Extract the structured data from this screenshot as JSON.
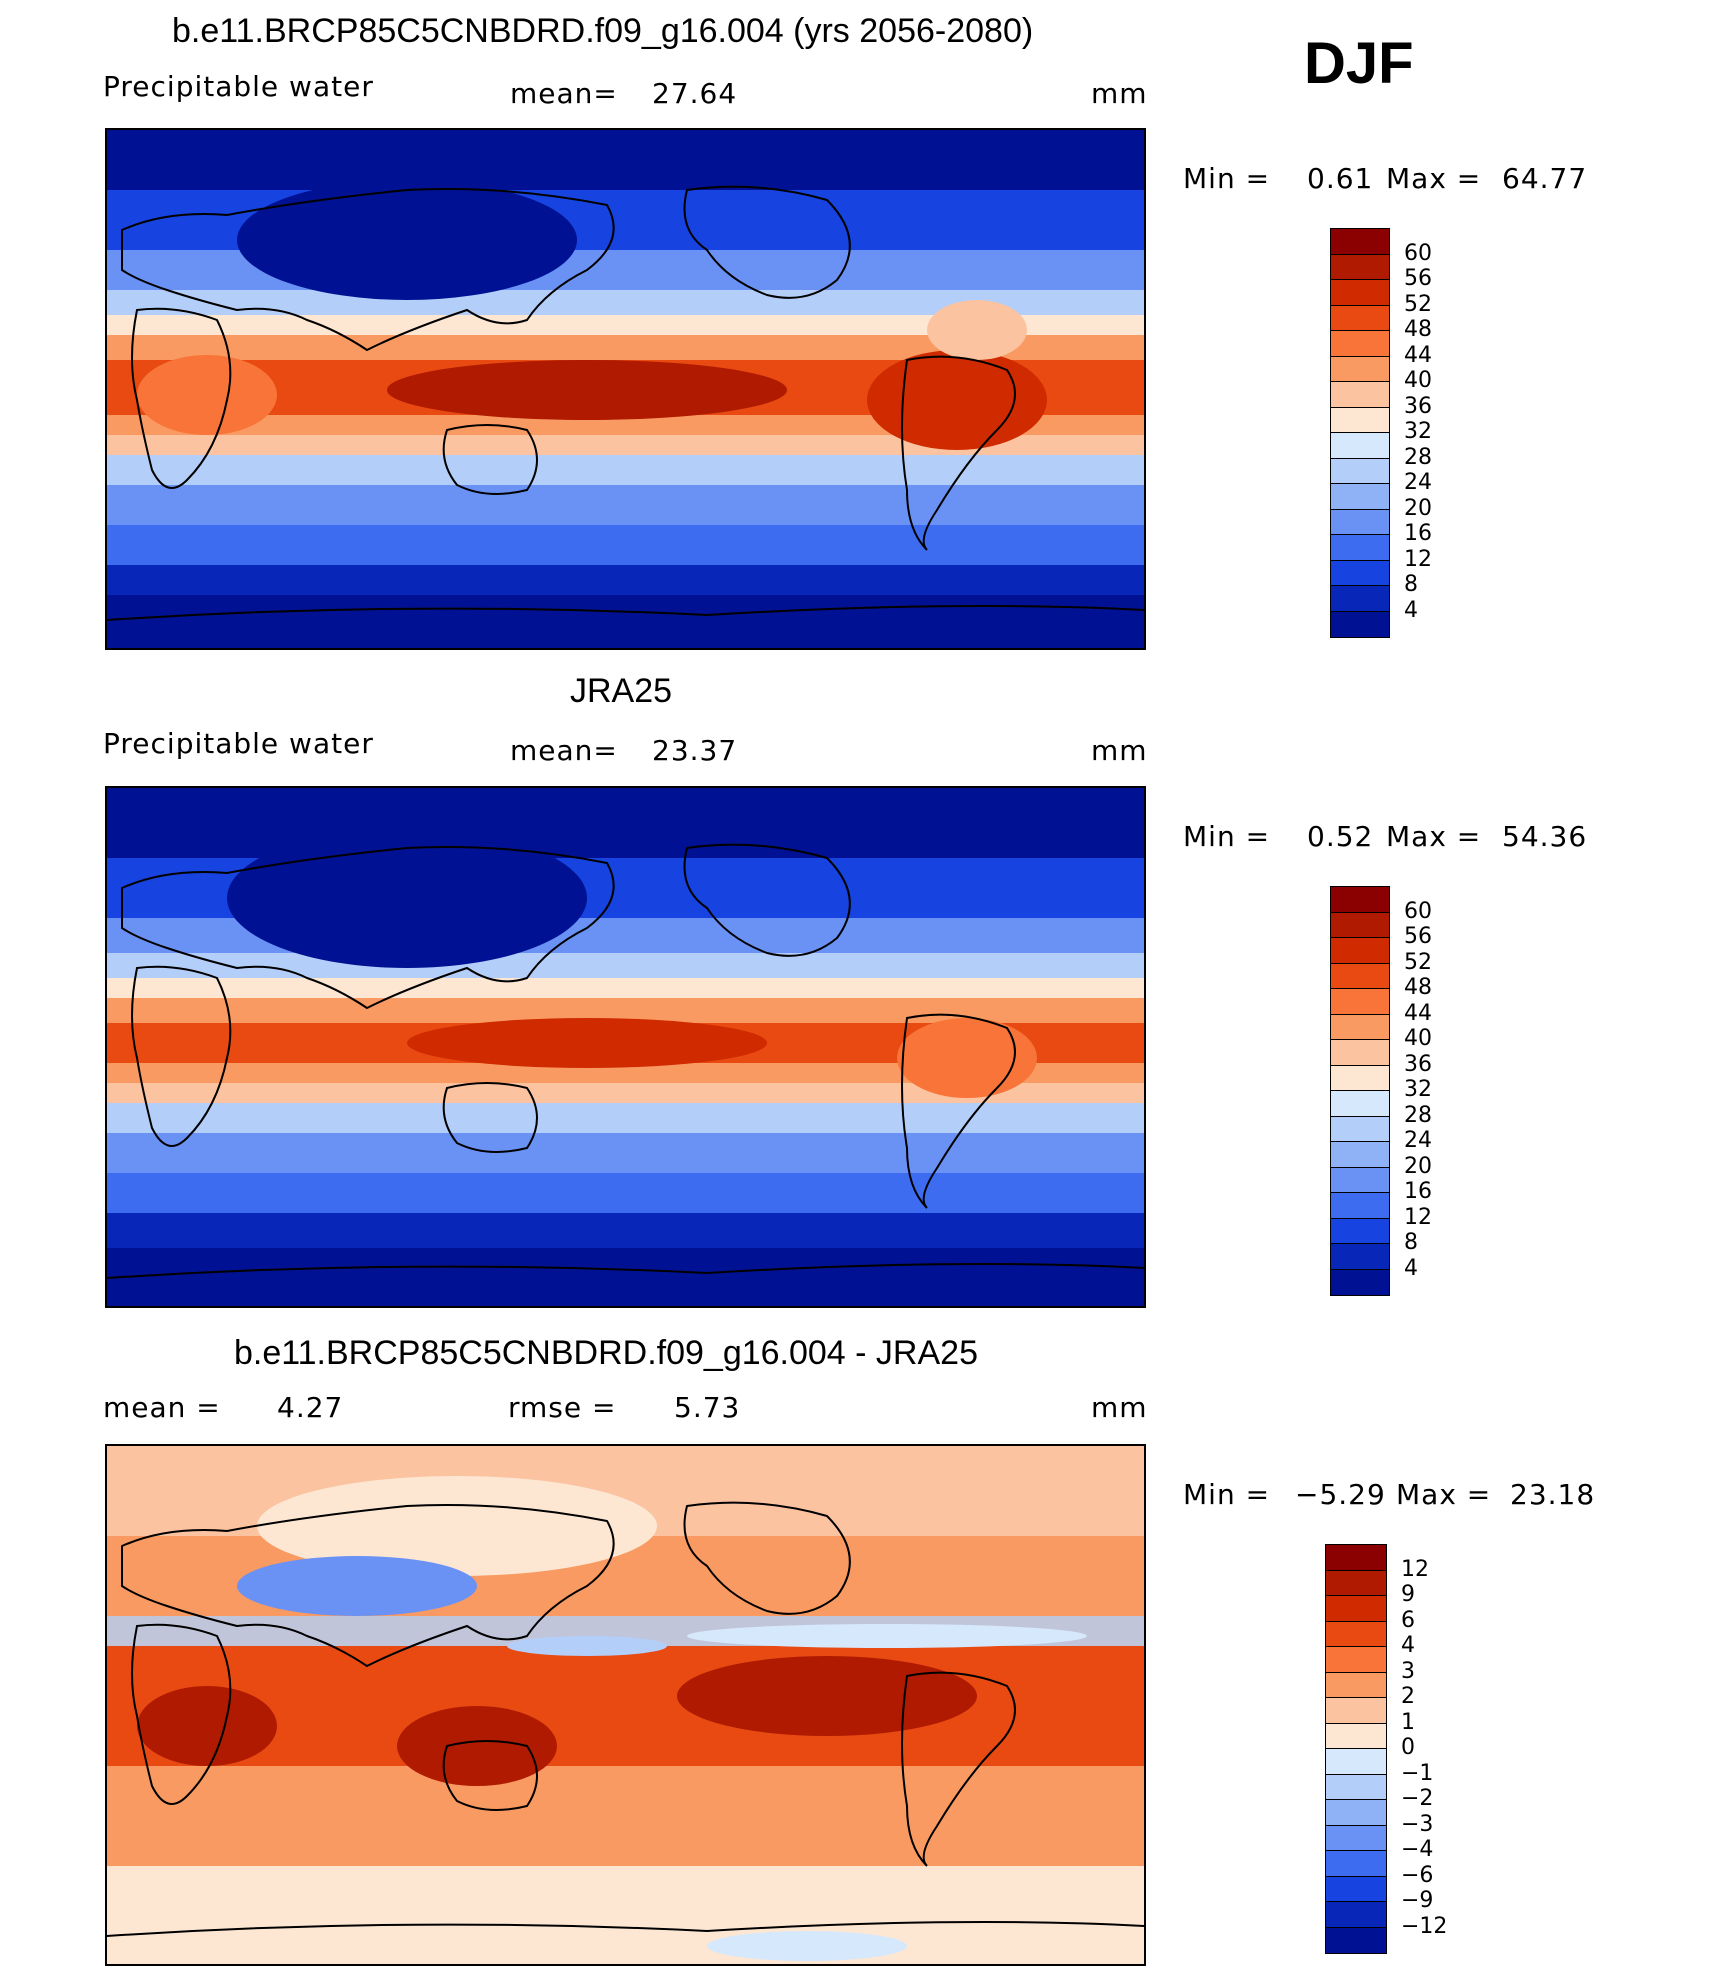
{
  "season": "DJF",
  "panels": [
    {
      "id": "model",
      "title": "b.e11.BRCP85C5CNBDRD.f09_g16.004 (yrs 2056-2080)",
      "left_label": "Precipitable  water",
      "stat_label": "mean=",
      "stat_value": "27.64",
      "units": "mm",
      "min_label": "Min  =",
      "min_value": "0.61",
      "max_label": "Max  =",
      "max_value": "64.77",
      "colorbar": {
        "levels": [
          "60",
          "56",
          "52",
          "48",
          "44",
          "40",
          "36",
          "32",
          "28",
          "24",
          "20",
          "16",
          "12",
          "8",
          "4"
        ],
        "colors": [
          "#8b0000",
          "#b01a00",
          "#d02a00",
          "#e84a12",
          "#f87438",
          "#f99a62",
          "#fbc3a0",
          "#fde7d2",
          "#d6e8fb",
          "#b3cff9",
          "#8fb2f7",
          "#6a92f5",
          "#3e6cf1",
          "#1743e0",
          "#0826b8",
          "#001293"
        ]
      }
    },
    {
      "id": "obs",
      "title": "JRA25",
      "left_label": "Precipitable  water",
      "stat_label": "mean=",
      "stat_value": "23.37",
      "units": "mm",
      "min_label": "Min  =",
      "min_value": "0.52",
      "max_label": "Max  =",
      "max_value": "54.36",
      "colorbar": {
        "levels": [
          "60",
          "56",
          "52",
          "48",
          "44",
          "40",
          "36",
          "32",
          "28",
          "24",
          "20",
          "16",
          "12",
          "8",
          "4"
        ],
        "colors": [
          "#8b0000",
          "#b01a00",
          "#d02a00",
          "#e84a12",
          "#f87438",
          "#f99a62",
          "#fbc3a0",
          "#fde7d2",
          "#d6e8fb",
          "#b3cff9",
          "#8fb2f7",
          "#6a92f5",
          "#3e6cf1",
          "#1743e0",
          "#0826b8",
          "#001293"
        ]
      }
    },
    {
      "id": "diff",
      "title": "b.e11.BRCP85C5CNBDRD.f09_g16.004 - JRA25",
      "left_label": "mean  =",
      "left_value": "4.27",
      "stat_label": "rmse  =",
      "stat_value": "5.73",
      "units": "mm",
      "min_label": "Min  =",
      "min_value": "−5.29",
      "max_label": "Max  =",
      "max_value": "23.18",
      "colorbar": {
        "levels": [
          "12",
          "9",
          "6",
          "4",
          "3",
          "2",
          "1",
          "0",
          "−1",
          "−2",
          "−3",
          "−4",
          "−6",
          "−9",
          "−12"
        ],
        "colors": [
          "#8b0000",
          "#b01a00",
          "#d02a00",
          "#e84a12",
          "#f87438",
          "#f99a62",
          "#fbc3a0",
          "#fde7d2",
          "#d6e8fb",
          "#b3cff9",
          "#8fb2f7",
          "#6a92f5",
          "#3e6cf1",
          "#1743e0",
          "#0826b8",
          "#001293"
        ]
      }
    }
  ]
}
